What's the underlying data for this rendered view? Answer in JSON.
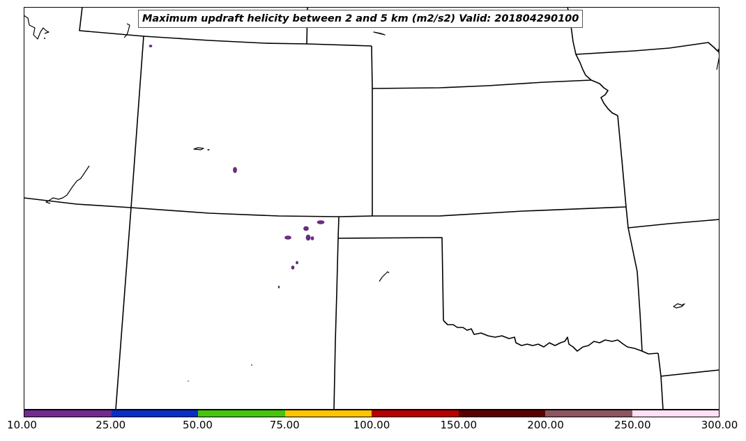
{
  "title": "Maximum updraft helicity between 2 and 5 km (m2/s2) Valid: 201804290100",
  "colorbar": {
    "ticks": [
      "10.00",
      "25.00",
      "50.00",
      "75.00",
      "100.00",
      "150.00",
      "200.00",
      "250.00",
      "300.00"
    ],
    "colors": [
      "#722a8f",
      "#0a2fc6",
      "#46c40e",
      "#ffc400",
      "#b80000",
      "#5c0000",
      "#8c5560",
      "#ffe0f6"
    ]
  },
  "colors": {
    "boundary": "#000000",
    "helicity_cell": "#722a8f"
  }
}
